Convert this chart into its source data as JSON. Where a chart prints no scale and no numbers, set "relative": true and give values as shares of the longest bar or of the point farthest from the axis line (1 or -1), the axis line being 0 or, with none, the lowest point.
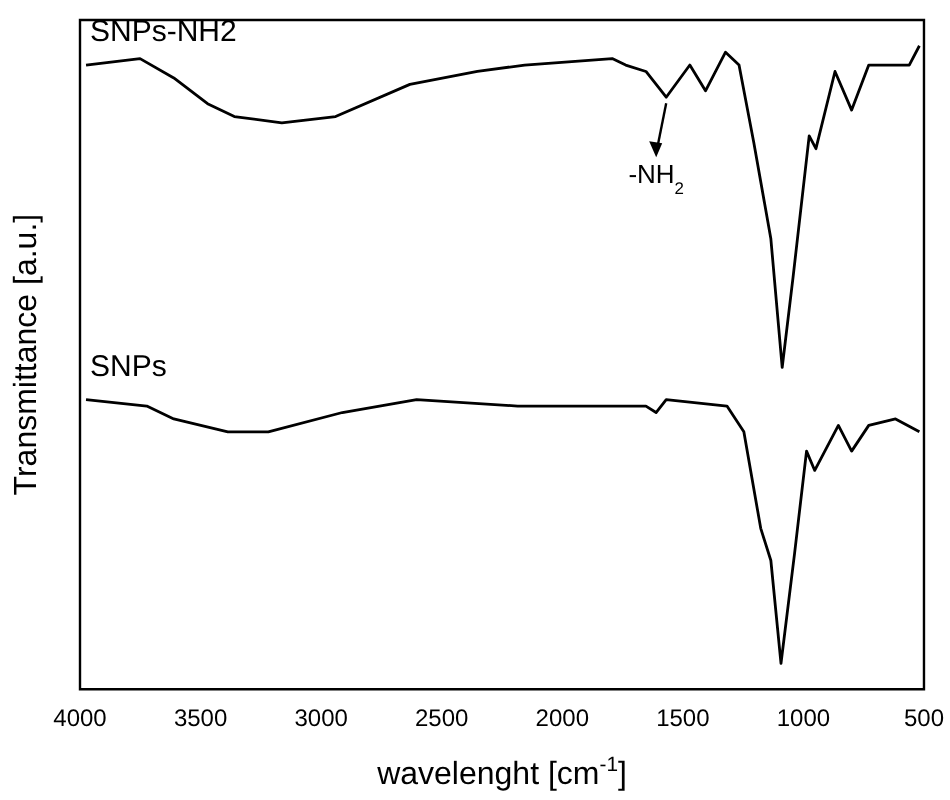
{
  "chart_data": {
    "type": "line",
    "relative": true,
    "xlabel": "wavelenght [cm$^{-1}$]",
    "ylabel": "Transmittance [a.u.]",
    "xlim": [
      4000,
      500
    ],
    "xticks": [
      4000,
      3500,
      3000,
      2500,
      2000,
      1500,
      1000,
      500
    ],
    "legend": false,
    "grid": false,
    "marker": "none",
    "line_style": "solid",
    "annotations": [
      {
        "text": "-NH$_{2}$",
        "x": 1569,
        "y": 0.92
      }
    ],
    "series": [
      {
        "name": "SNPs-NH2",
        "color": "#000000",
        "x": [
          3975,
          3751,
          3611,
          3471,
          3360,
          3163,
          2940,
          2632,
          2352,
          2156,
          1793,
          1737,
          1653,
          1569,
          1471,
          1406,
          1323,
          1267,
          1206,
          1135,
          1088,
          1043,
          976,
          948,
          869,
          800,
          729,
          561,
          519
        ],
        "values": [
          0.97,
          0.98,
          0.95,
          0.91,
          0.89,
          0.88,
          0.89,
          0.94,
          0.96,
          0.97,
          0.98,
          0.97,
          0.96,
          0.92,
          0.97,
          0.93,
          0.99,
          0.97,
          0.85,
          0.7,
          0.5,
          0.64,
          0.86,
          0.84,
          0.96,
          0.9,
          0.97,
          0.97,
          1
        ]
      },
      {
        "name": "SNPs",
        "color": "#000000",
        "x": [
          3975,
          3723,
          3611,
          3387,
          3219,
          2912,
          2604,
          2185,
          1653,
          1611,
          1569,
          1317,
          1247,
          1177,
          1135,
          1093,
          1037,
          987,
          953,
          855,
          800,
          729,
          618,
          519
        ],
        "values": [
          0.45,
          0.44,
          0.42,
          0.4,
          0.4,
          0.43,
          0.45,
          0.44,
          0.44,
          0.43,
          0.45,
          0.44,
          0.4,
          0.25,
          0.2,
          0.04,
          0.21,
          0.37,
          0.34,
          0.41,
          0.37,
          0.41,
          0.42,
          0.4
        ]
      }
    ]
  }
}
